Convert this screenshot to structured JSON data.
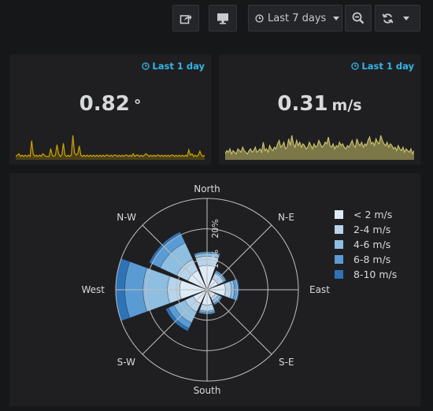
{
  "toolbar": {
    "share_icon": "share-icon",
    "tv_icon": "monitor-icon",
    "time_range_label": "Last 7 days",
    "zoom_icon": "zoom-out-icon",
    "refresh_icon": "refresh-icon"
  },
  "panels": [
    {
      "time_info": "Last 1 day",
      "value": "0.82",
      "unit": "°",
      "spark_color": "#cca300",
      "spark_fill": "rgba(204,163,0,0.25)",
      "spark": [
        2,
        3,
        4,
        2,
        3,
        2,
        3,
        2,
        3,
        2,
        14,
        4,
        2,
        3,
        2,
        3,
        2,
        4,
        3,
        2,
        2,
        2,
        8,
        3,
        2,
        3,
        11,
        4,
        2,
        3,
        12,
        3,
        2,
        3,
        2,
        3,
        18,
        5,
        3,
        4,
        10,
        3,
        2,
        3,
        2,
        3,
        2,
        3,
        2,
        3,
        2,
        3,
        2,
        3,
        2,
        3,
        2,
        3,
        3,
        2,
        3,
        2,
        3,
        3,
        2,
        3,
        2,
        3,
        2,
        3,
        3,
        2,
        3,
        2,
        4,
        2,
        3,
        3,
        2,
        3,
        2,
        3,
        4,
        3,
        2,
        3,
        2,
        3,
        2,
        3,
        3,
        2,
        3,
        2,
        3,
        2,
        3,
        2,
        3,
        3,
        2,
        3,
        2,
        3,
        2,
        3,
        2,
        3,
        2,
        7,
        3,
        4,
        2,
        3,
        2,
        3,
        6,
        3,
        2,
        3
      ]
    },
    {
      "time_info": "Last 1 day",
      "value": "0.31",
      "unit": "m/s",
      "spark_color": "#c9c06a",
      "spark_fill": "rgba(201,192,106,0.55)",
      "spark": [
        3,
        5,
        4,
        6,
        3,
        5,
        4,
        3,
        6,
        5,
        4,
        7,
        5,
        4,
        3,
        5,
        6,
        4,
        5,
        7,
        4,
        5,
        6,
        4,
        10,
        5,
        6,
        4,
        8,
        6,
        5,
        7,
        6,
        9,
        11,
        7,
        8,
        10,
        6,
        7,
        12,
        8,
        14,
        9,
        7,
        11,
        8,
        10,
        7,
        9,
        8,
        6,
        7,
        10,
        8,
        6,
        9,
        7,
        8,
        11,
        9,
        7,
        8,
        10,
        9,
        13,
        8,
        7,
        9,
        6,
        8,
        7,
        10,
        8,
        9,
        7,
        6,
        8,
        7,
        9,
        11,
        8,
        7,
        12,
        9,
        8,
        10,
        7,
        9,
        8,
        11,
        13,
        9,
        10,
        8,
        12,
        10,
        9,
        14,
        11,
        9,
        8,
        10,
        7,
        9,
        8,
        6,
        7,
        5,
        8,
        6,
        5,
        7,
        4,
        6,
        5,
        4,
        6,
        3,
        5
      ]
    }
  ],
  "windrose": {
    "directions": [
      "North",
      "N-E",
      "East",
      "S-E",
      "South",
      "S-W",
      "West",
      "N-W"
    ],
    "ring_labels": [
      "10%",
      "20%"
    ]
  },
  "chart_data": {
    "type": "windrose",
    "directions": [
      "North",
      "N-E",
      "East",
      "S-E",
      "South",
      "S-W",
      "West",
      "N-W"
    ],
    "rmax": 30,
    "ring_ticks": [
      10,
      20
    ],
    "series": [
      {
        "name": "< 2 m/s",
        "color": "#deebf7",
        "values": [
          8,
          4,
          6,
          3,
          5,
          5,
          9,
          7
        ]
      },
      {
        "name": "2-4 m/s",
        "color": "#b8d4eb",
        "values": [
          3,
          2,
          2,
          1,
          2,
          3,
          4,
          4
        ]
      },
      {
        "name": "4-6 m/s",
        "color": "#8ebee0",
        "values": [
          1,
          0.5,
          1,
          1,
          0.5,
          4,
          8,
          6
        ]
      },
      {
        "name": "6-8 m/s",
        "color": "#5a9bd4",
        "values": [
          0.5,
          0.5,
          1,
          0.5,
          0.5,
          2,
          6,
          3
        ]
      },
      {
        "name": "8-10 m/s",
        "color": "#2e73b5",
        "values": [
          0,
          0,
          0.5,
          0,
          0,
          1,
          3,
          1
        ]
      }
    ]
  }
}
